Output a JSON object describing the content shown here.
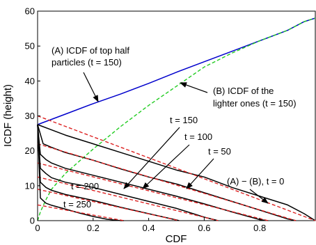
{
  "chart_data": {
    "type": "line",
    "xlabel": "CDF",
    "ylabel": "ICDF (height)",
    "xlim": [
      0,
      1
    ],
    "ylim": [
      0,
      60
    ],
    "x_ticks": [
      "0",
      "0.2",
      "0.4",
      "0.6",
      "0.8"
    ],
    "x_tick_values": [
      0,
      0.2,
      0.4,
      0.6,
      0.8
    ],
    "y_ticks": [
      "0",
      "10",
      "20",
      "30",
      "40",
      "50",
      "60"
    ],
    "y_tick_values": [
      0,
      10,
      20,
      30,
      40,
      50,
      60
    ],
    "grid": false,
    "colors": {
      "top_half": "#0000cc",
      "lighter": "#22cc22",
      "difference": "#000000",
      "fit": "#dd2222"
    },
    "series": [
      {
        "id": "A",
        "color": "#0000cc",
        "style": "solid",
        "x": [
          0,
          0.1,
          0.2,
          0.3,
          0.4,
          0.5,
          0.6,
          0.7,
          0.8,
          0.9,
          0.96,
          1.0
        ],
        "y": [
          27.5,
          30.5,
          33.5,
          36.3,
          39.3,
          42.5,
          45.5,
          48.5,
          51.5,
          54.5,
          57,
          58
        ]
      },
      {
        "id": "B",
        "color": "#22cc22",
        "style": "dashed",
        "x": [
          0,
          0.01,
          0.03,
          0.05,
          0.1,
          0.15,
          0.2,
          0.3,
          0.4,
          0.5,
          0.6,
          0.7,
          0.8,
          0.9,
          0.96,
          1.0
        ],
        "y": [
          0,
          2.5,
          6,
          9,
          13.5,
          17,
          20.5,
          27,
          33,
          38.5,
          44,
          48,
          51.5,
          54.5,
          57,
          58
        ]
      },
      {
        "id": "t0",
        "color": "#000000",
        "style": "solid",
        "x": [
          0,
          0.05,
          0.1,
          0.2,
          0.3,
          0.4,
          0.5,
          0.6,
          0.7,
          0.8,
          0.9,
          0.96,
          1.0
        ],
        "y": [
          27.5,
          26,
          24.5,
          22,
          19.5,
          17,
          14.5,
          12.5,
          9.5,
          7,
          4.5,
          2,
          0
        ]
      },
      {
        "id": "t0-fit",
        "color": "#dd2222",
        "style": "dashed",
        "x": [
          0,
          1.0
        ],
        "y": [
          30,
          0
        ]
      },
      {
        "id": "t50",
        "color": "#000000",
        "style": "solid",
        "x": [
          0,
          0.02,
          0.05,
          0.1,
          0.2,
          0.3,
          0.4,
          0.5,
          0.6,
          0.7,
          0.8,
          0.9,
          0.93
        ],
        "y": [
          27.5,
          22,
          21,
          19.5,
          17.3,
          14.8,
          12.5,
          10.5,
          8,
          5.5,
          3,
          0.5,
          0
        ]
      },
      {
        "id": "t50-fit",
        "color": "#dd2222",
        "style": "dashed",
        "x": [
          0,
          0.93
        ],
        "y": [
          22,
          0
        ]
      },
      {
        "id": "t100",
        "color": "#000000",
        "style": "solid",
        "x": [
          0,
          0.01,
          0.03,
          0.05,
          0.1,
          0.2,
          0.3,
          0.4,
          0.5,
          0.6,
          0.7,
          0.8,
          0.83
        ],
        "y": [
          27.5,
          19,
          17.5,
          16.5,
          15,
          13,
          11,
          9,
          7,
          4.8,
          2.5,
          0.3,
          0
        ]
      },
      {
        "id": "t100-fit",
        "color": "#dd2222",
        "style": "dashed",
        "x": [
          0,
          0.83
        ],
        "y": [
          16.5,
          0
        ]
      },
      {
        "id": "t150",
        "color": "#000000",
        "style": "solid",
        "x": [
          0,
          0.01,
          0.03,
          0.05,
          0.1,
          0.2,
          0.3,
          0.4,
          0.5,
          0.6,
          0.65
        ],
        "y": [
          27.5,
          15,
          13.5,
          12.3,
          11,
          9.5,
          7.5,
          5.5,
          3.5,
          1,
          0
        ]
      },
      {
        "id": "t150-fit",
        "color": "#dd2222",
        "style": "dashed",
        "x": [
          0,
          0.65
        ],
        "y": [
          12.5,
          0
        ]
      },
      {
        "id": "t200",
        "color": "#000000",
        "style": "solid",
        "x": [
          0,
          0.01,
          0.03,
          0.05,
          0.1,
          0.2,
          0.3,
          0.4,
          0.5,
          0.51
        ],
        "y": [
          27.5,
          11,
          9.5,
          8.7,
          7.5,
          5.8,
          3.8,
          2,
          0.2,
          0
        ]
      },
      {
        "id": "t200-fit",
        "color": "#dd2222",
        "style": "dashed",
        "x": [
          0,
          0.51
        ],
        "y": [
          9,
          0
        ]
      },
      {
        "id": "t250",
        "color": "#000000",
        "style": "solid",
        "x": [
          0,
          0.01,
          0.03,
          0.05,
          0.1,
          0.15,
          0.2,
          0.25,
          0.3,
          0.31
        ],
        "y": [
          27.5,
          6.5,
          5,
          4.4,
          3.3,
          2.2,
          1.2,
          0.4,
          0,
          0
        ]
      },
      {
        "id": "t250-fit",
        "color": "#dd2222",
        "style": "dashed",
        "x": [
          0,
          0.31
        ],
        "y": [
          4.5,
          0
        ]
      }
    ],
    "annotations": [
      {
        "id": "a-label",
        "lines": [
          "(A) ICDF of top half",
          "particles (t = 150)"
        ]
      },
      {
        "id": "b-label",
        "lines": [
          "(B) ICDF of the",
          "lighter ones (t = 150)"
        ]
      },
      {
        "id": "t150-label",
        "lines": [
          "t = 150"
        ]
      },
      {
        "id": "t100-label",
        "lines": [
          "t = 100"
        ]
      },
      {
        "id": "t50-label",
        "lines": [
          "t = 50"
        ]
      },
      {
        "id": "t0-label",
        "lines": [
          "(A) − (B), t = 0"
        ]
      },
      {
        "id": "t200-label",
        "lines": [
          "t = 200"
        ]
      },
      {
        "id": "t250-label",
        "lines": [
          "t = 250"
        ]
      }
    ]
  }
}
